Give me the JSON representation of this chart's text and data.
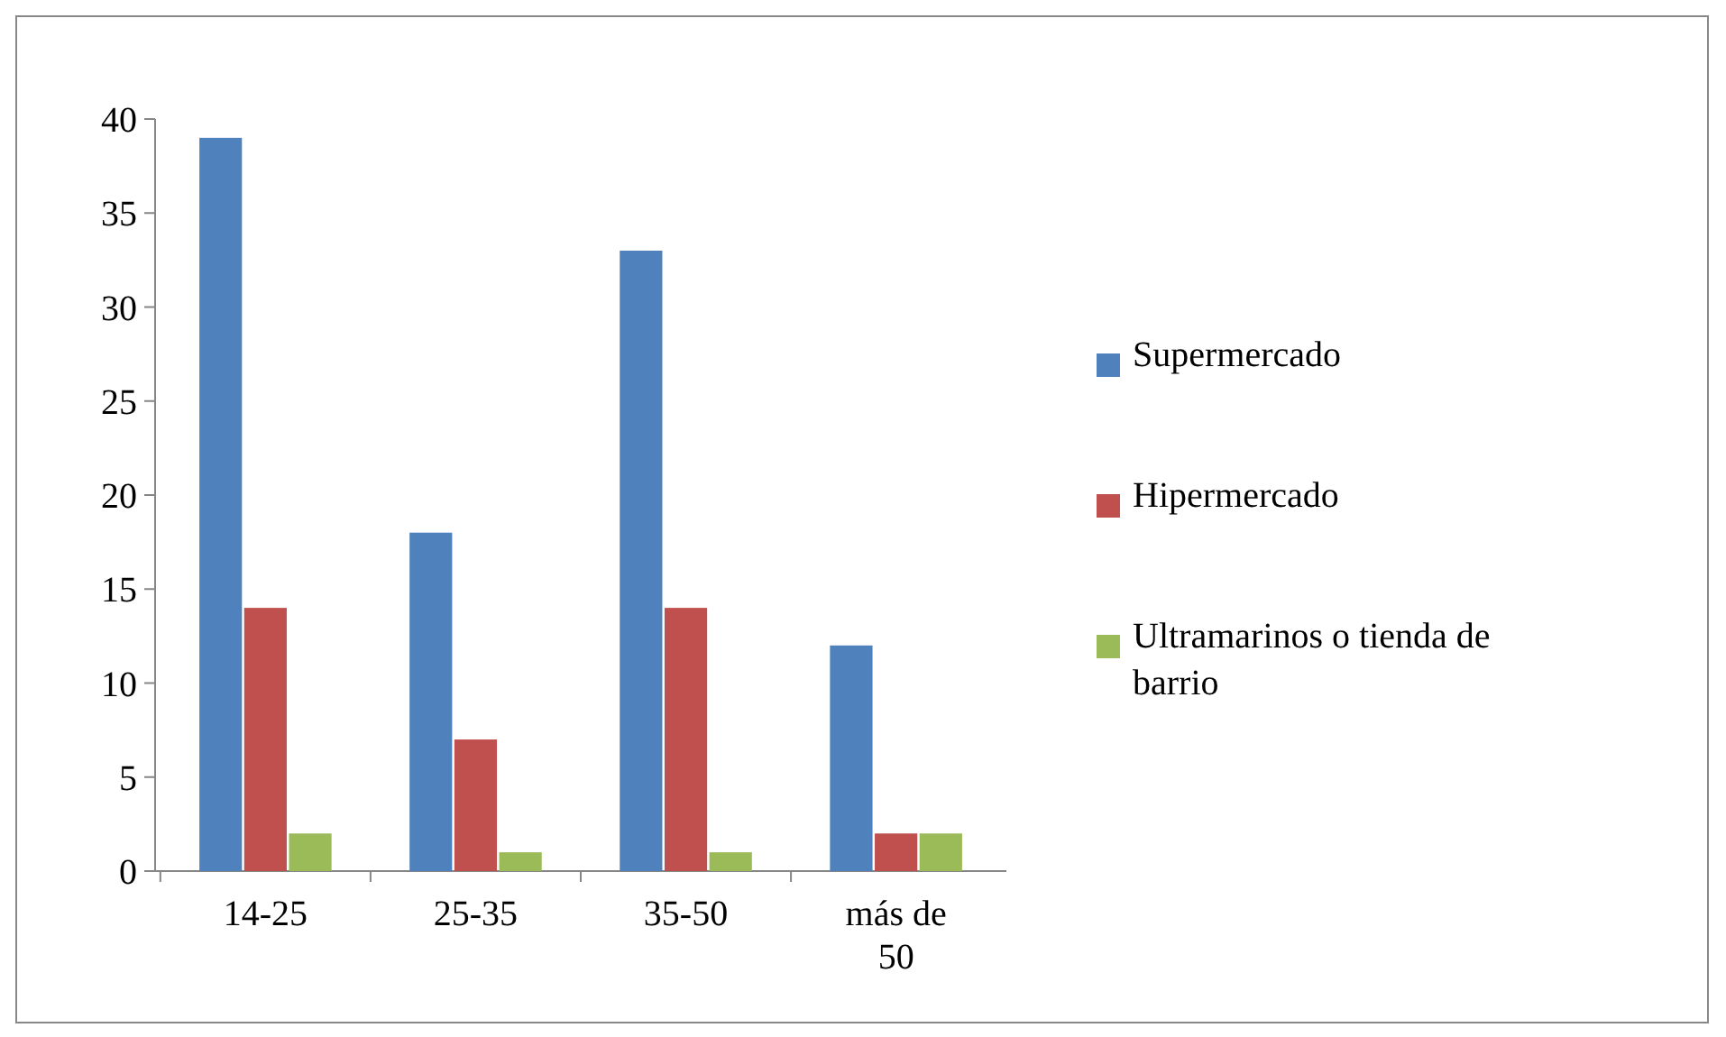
{
  "chart_data": {
    "type": "bar",
    "categories": [
      "14-25",
      "25-35",
      "35-50",
      "más de 50"
    ],
    "series": [
      {
        "name": "Supermercado",
        "color": "#4f81bd",
        "values": [
          39,
          18,
          33,
          12
        ]
      },
      {
        "name": "Hipermercado",
        "color": "#c0504d",
        "values": [
          14,
          7,
          14,
          2
        ]
      },
      {
        "name": "Ultramarinos o tienda de barrio",
        "color": "#9bbb59",
        "values": [
          2,
          1,
          1,
          2
        ]
      }
    ],
    "ylim": [
      0,
      40
    ],
    "yticks": [
      0,
      5,
      10,
      15,
      20,
      25,
      30,
      35,
      40
    ],
    "grid": false,
    "legend": "right"
  }
}
